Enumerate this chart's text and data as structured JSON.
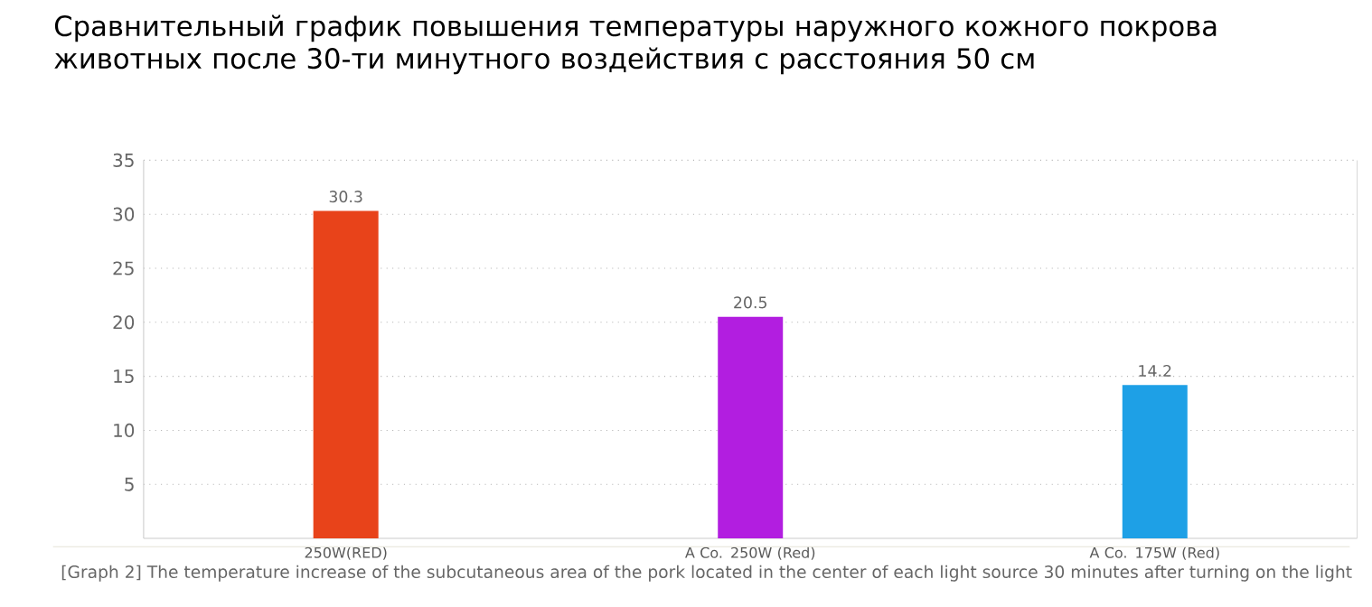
{
  "chart_data": {
    "type": "bar",
    "title": "Сравнительный график повышения температуры наружного кожного покрова животных после 30-ти минутного воздействия с расстояния 50 см",
    "categories": [
      "250W(RED)",
      "A Co. 250W (Red)",
      "A Co. 175W (Red)"
    ],
    "values": [
      30.3,
      20.5,
      14.2
    ],
    "colors": [
      "#e8431a",
      "#b21ee0",
      "#1ea0e6"
    ],
    "ylim": [
      0,
      35
    ],
    "yticks": [
      5,
      10,
      15,
      20,
      25,
      30,
      35
    ],
    "grid": "y",
    "data_labels": true,
    "annotations": [
      "[Graph 2] The temperature increase of the subcutaneous area of the pork located in the center of each light source 30 minutes after turning on the light"
    ]
  }
}
